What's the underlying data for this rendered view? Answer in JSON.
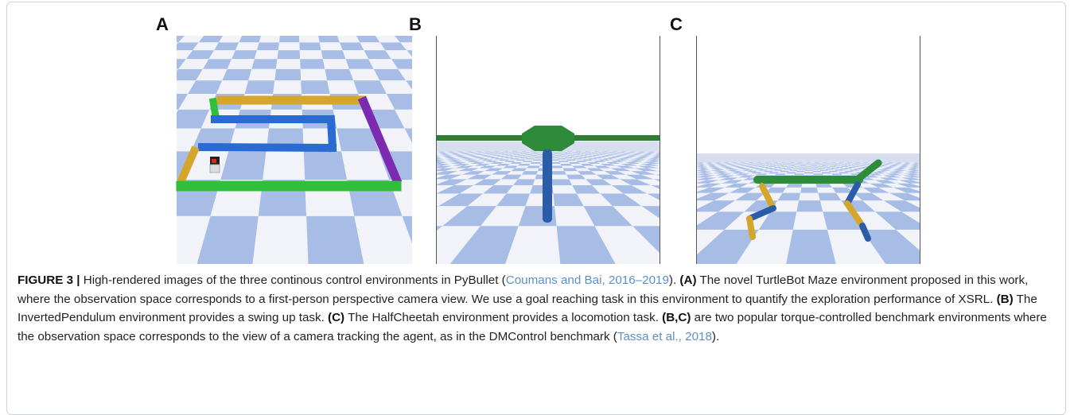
{
  "figure": {
    "panels": [
      {
        "label": "A"
      },
      {
        "label": "B"
      },
      {
        "label": "C"
      }
    ],
    "caption": {
      "runs": [
        "FIGURE 3 |",
        " High-rendered images of the three continous control environments in PyBullet (",
        "Coumans and Bai, 2016–2019",
        "). ",
        "(A)",
        " The novel TurtleBot Maze environment proposed in this work, where the observation space corresponds to a first-person perspective camera view. We use a goal reaching task in this environment to quantify the exploration performance of XSRL. ",
        "(B)",
        " The InvertedPendulum environment provides a swing up task. ",
        "(C)",
        " The HalfCheetah environment provides a locomotion task. ",
        "(B,C)",
        " are two popular torque-controlled benchmark environments where the observation space corresponds to the view of a camera tracking the agent, as in the DMControl benchmark (",
        "Tassa et al., 2018",
        ")."
      ]
    }
  }
}
